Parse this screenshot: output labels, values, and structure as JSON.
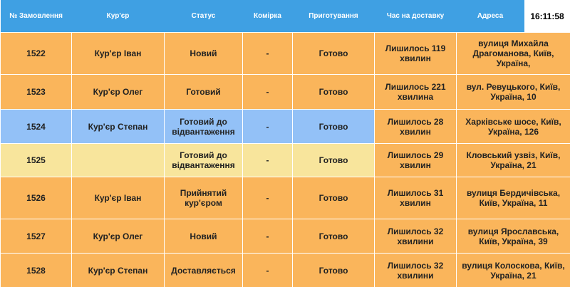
{
  "header": {
    "columns": [
      "№ Замовлення",
      "Кур'єр",
      "Статус",
      "Комірка",
      "Приготування",
      "Час на доставку",
      "Адреса"
    ],
    "clock": "16:11:58"
  },
  "table": {
    "rows": [
      {
        "color": "#fab55b",
        "cells": [
          "1522",
          "Кур'єр Іван",
          "Новий",
          "-",
          "Готово",
          "Лишилось 119 хвилин",
          "вулиця Михайла Драгоманова, Київ, Україна,"
        ]
      },
      {
        "color": "#fab55b",
        "cells": [
          "1523",
          "Кур'єр Олег",
          "Готовий",
          "-",
          "Готово",
          "Лишилось 221 хвилина",
          "вул. Ревуцького, Київ, Україна, 10"
        ]
      },
      {
        "color": "#93c1f7",
        "cells": [
          "1524",
          "Кур'єр Степан",
          "Готовий до відвантаження",
          "-",
          "Готово",
          "Лишилось 28 хвилин",
          "Харківське шосе, Київ, Україна, 126"
        ]
      },
      {
        "color": "#f8e59c",
        "cells": [
          "1525",
          null,
          "Готовий до відвантаження",
          "-",
          "Готово",
          "Лишилось 29 хвилин",
          "Кловський узвіз, Київ, Україна, 21"
        ]
      },
      {
        "color": "#fab55b",
        "cells": [
          "1526",
          "Кур'єр Іван",
          "Прийнятий кур'єром",
          "-",
          "Готово",
          "Лишилось 31 хвилин",
          "вулиця Бердичівська, Київ, Україна, 11"
        ]
      },
      {
        "color": "#fab55b",
        "cells": [
          "1527",
          "Кур'єр Олег",
          "Новий",
          "-",
          "Готово",
          "Лишилось 32 хвилини",
          "вулиця Ярославська, Київ, Україна, 39"
        ]
      },
      {
        "color": "#fab55b",
        "cells": [
          "1528",
          "Кур'єр Степан",
          "Доставляється",
          "-",
          "Готово",
          "Лишилось 32 хвилини",
          "вулиця Колоскова, Київ, Україна, 21"
        ]
      }
    ]
  }
}
